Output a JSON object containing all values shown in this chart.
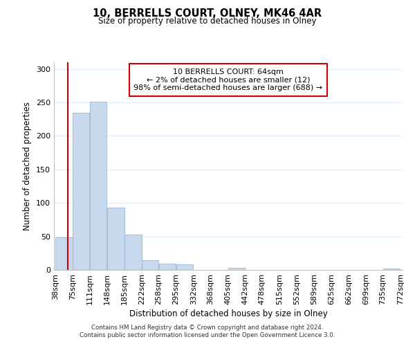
{
  "title": "10, BERRELLS COURT, OLNEY, MK46 4AR",
  "subtitle": "Size of property relative to detached houses in Olney",
  "xlabel": "Distribution of detached houses by size in Olney",
  "ylabel": "Number of detached properties",
  "bar_left_edges": [
    38,
    75,
    111,
    148,
    185,
    222,
    258,
    295,
    332,
    368,
    405,
    442,
    478,
    515,
    552,
    589,
    625,
    662,
    699,
    735
  ],
  "bar_widths": [
    37,
    36,
    37,
    37,
    37,
    36,
    37,
    37,
    36,
    37,
    37,
    36,
    37,
    37,
    37,
    36,
    37,
    37,
    36,
    37
  ],
  "bar_heights": [
    49,
    235,
    251,
    93,
    53,
    14,
    9,
    8,
    0,
    0,
    3,
    0,
    0,
    0,
    0,
    0,
    0,
    0,
    0,
    2
  ],
  "bar_color": "#c8d9ee",
  "bar_edgecolor": "#9ab5d4",
  "tick_labels": [
    "38sqm",
    "75sqm",
    "111sqm",
    "148sqm",
    "185sqm",
    "222sqm",
    "258sqm",
    "295sqm",
    "332sqm",
    "368sqm",
    "405sqm",
    "442sqm",
    "478sqm",
    "515sqm",
    "552sqm",
    "589sqm",
    "625sqm",
    "662sqm",
    "699sqm",
    "735sqm",
    "772sqm"
  ],
  "property_line_x": 64,
  "property_line_color": "#cc0000",
  "ylim": [
    0,
    310
  ],
  "yticks": [
    0,
    50,
    100,
    150,
    200,
    250,
    300
  ],
  "annotation_title": "10 BERRELLS COURT: 64sqm",
  "annotation_line1": "← 2% of detached houses are smaller (12)",
  "annotation_line2": "98% of semi-detached houses are larger (688) →",
  "annotation_box_color": "#cc0000",
  "grid_color": "#ddeeff",
  "footer_line1": "Contains HM Land Registry data © Crown copyright and database right 2024.",
  "footer_line2": "Contains public sector information licensed under the Open Government Licence 3.0."
}
